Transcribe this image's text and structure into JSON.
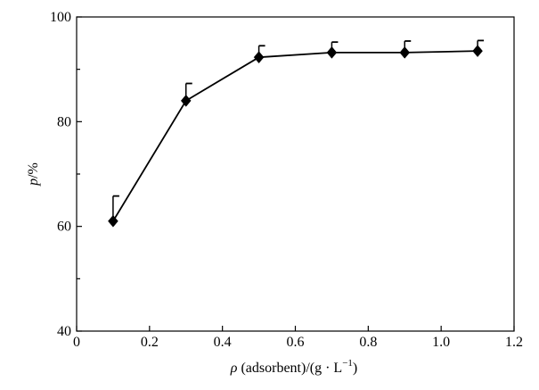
{
  "chart_data": {
    "type": "line",
    "title": "",
    "xlabel_parts": {
      "rho": "ρ",
      "middle": " (adsorbent)/(g · L",
      "superscript": "−1",
      "end": ")"
    },
    "ylabel_parts": {
      "italic": "p",
      "rest": "/%"
    },
    "xlim": [
      0,
      1.2
    ],
    "ylim": [
      40,
      100
    ],
    "x_ticks": [
      0,
      0.2,
      0.4,
      0.6,
      0.8,
      1.0,
      1.2
    ],
    "x_tick_labels": [
      "0",
      "0.2",
      "0.4",
      "0.6",
      "0.8",
      "1.0",
      "1.2"
    ],
    "y_major_ticks": [
      40,
      60,
      80,
      100
    ],
    "y_tick_labels": [
      "40",
      "60",
      "80",
      "100"
    ],
    "y_minor_ticks": [
      50,
      70,
      90
    ],
    "grid": false,
    "marker": "diamond",
    "series": [
      {
        "x": [
          0.1,
          0.3,
          0.5,
          0.7,
          0.9,
          1.1
        ],
        "y": [
          61.0,
          84.0,
          92.3,
          93.2,
          93.2,
          93.5
        ],
        "error_upper": [
          4.8,
          3.3,
          2.2,
          2.0,
          2.2,
          2.0
        ]
      }
    ],
    "colors": {
      "line": "#000000",
      "marker": "#000000",
      "axis": "#000000"
    }
  }
}
